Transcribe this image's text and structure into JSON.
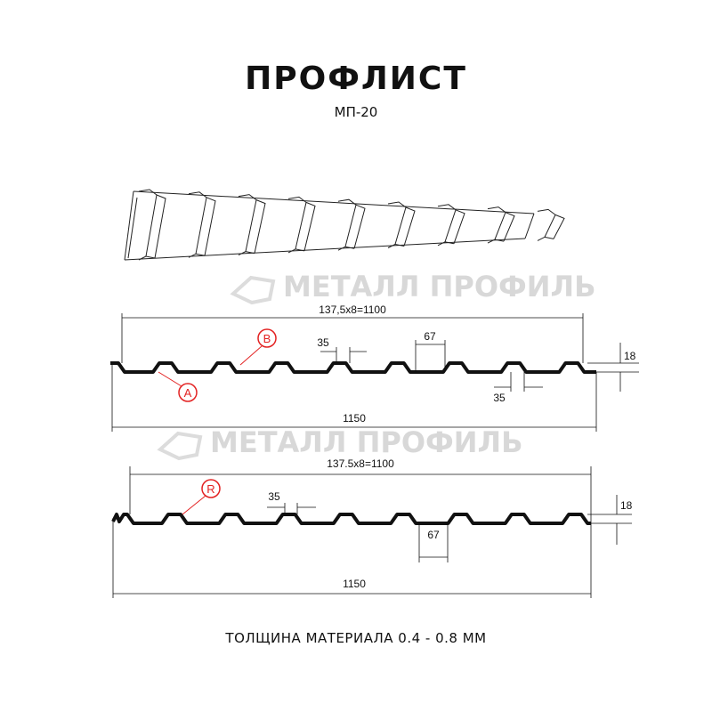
{
  "title": "ПРОФЛИСТ",
  "subtitle": "МП-20",
  "footer": "ТОЛЩИНА МАТЕРИАЛА 0.4 - 0.8 ММ",
  "watermark": "МЕТАЛЛ ПРОФИЛЬ",
  "colors": {
    "profile": "#111111",
    "callout": "#e32222",
    "watermark": "#d8d8d8"
  },
  "profile_a": {
    "pitch_label": "137,5х8=1100",
    "width_label": "1150",
    "crest_label": "35",
    "valley_label": "67",
    "bottom_label": "35",
    "height_label": "18",
    "callouts": [
      "A",
      "B"
    ]
  },
  "profile_b": {
    "pitch_label": "137.5x8=1100",
    "width_label": "1150",
    "crest_label": "35",
    "valley_label": "67",
    "height_label": "18",
    "callouts": [
      "R"
    ]
  }
}
